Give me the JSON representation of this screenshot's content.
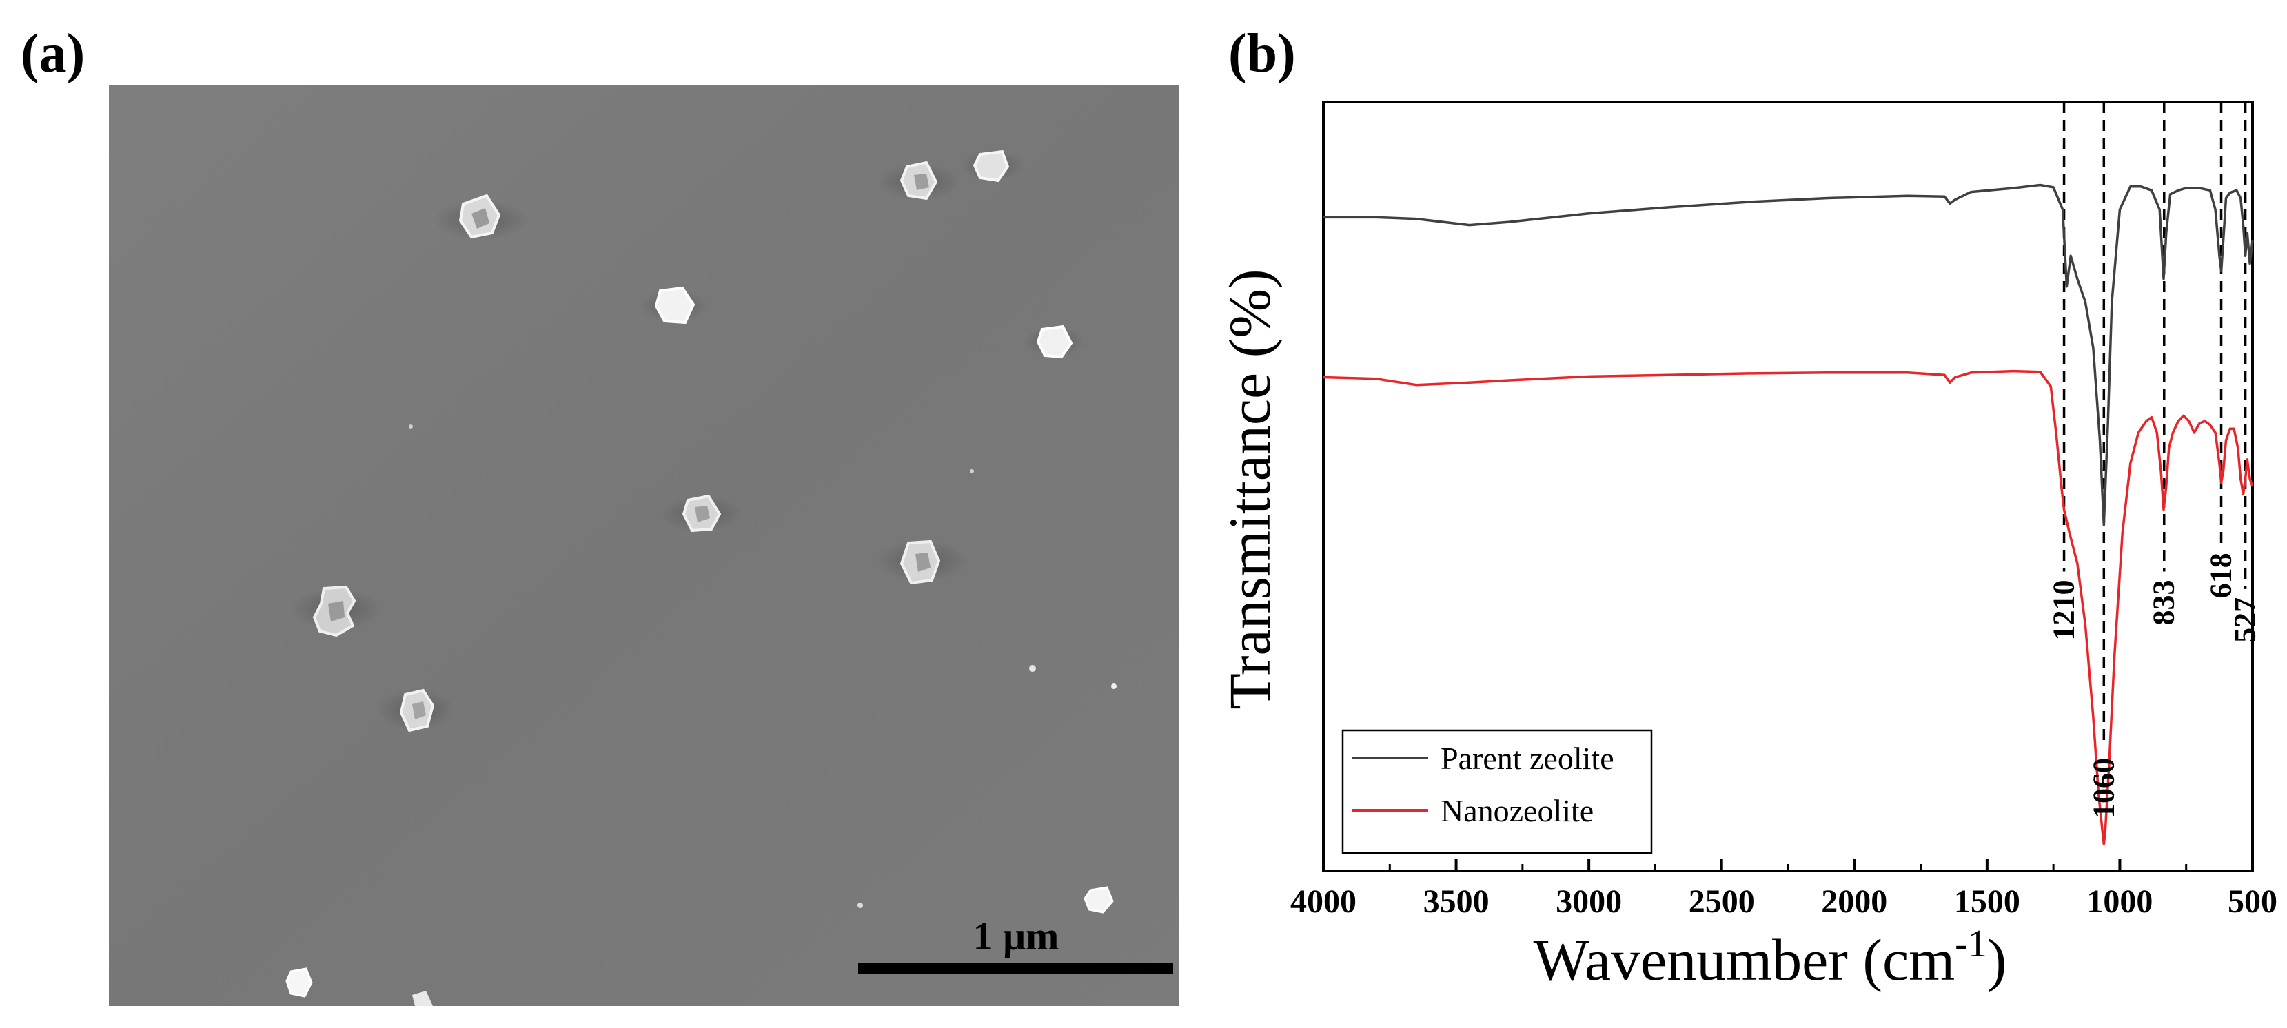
{
  "panels": {
    "a": {
      "label": "(a)",
      "scale_bar_label": "1 μm"
    },
    "b": {
      "label": "(b)"
    }
  },
  "colors": {
    "parent": "#404040",
    "nano": "#e8262a",
    "sem_background": "#7a7a7a",
    "particle": "#e6e6e6"
  },
  "chart_data": {
    "type": "line",
    "title": "",
    "xlabel": "Wavenumber (cm-1)",
    "xlabel_main": "Wavenumber (cm",
    "xlabel_sup": "-1",
    "xlabel_close": ")",
    "ylabel": "Transmittance (%)",
    "xlim": [
      4000,
      500
    ],
    "ylim": [
      0,
      100
    ],
    "xticks": [
      4000,
      3500,
      3000,
      2500,
      2000,
      1500,
      1000,
      500
    ],
    "x_inverted": true,
    "legend_position": "bottom-left",
    "series": [
      {
        "name": "Parent zeolite",
        "color": "#404040",
        "x": [
          4000,
          3800,
          3650,
          3450,
          3300,
          3000,
          2700,
          2400,
          2100,
          1800,
          1660,
          1640,
          1620,
          1560,
          1400,
          1300,
          1250,
          1215,
          1200,
          1185,
          1160,
          1130,
          1100,
          1075,
          1060,
          1045,
          1030,
          1000,
          960,
          920,
          880,
          850,
          835,
          825,
          810,
          780,
          750,
          700,
          660,
          640,
          625,
          618,
          610,
          600,
          585,
          560,
          545,
          535,
          527,
          520,
          510,
          500
        ],
        "y": [
          85,
          85,
          84.8,
          84,
          84.4,
          85.5,
          86.3,
          87,
          87.5,
          87.8,
          87.7,
          86.8,
          87.3,
          88.3,
          88.8,
          89.2,
          88.9,
          86,
          76,
          80,
          77,
          74,
          68,
          56,
          45,
          58,
          74,
          86,
          89,
          89,
          88.5,
          86,
          77,
          83,
          88,
          88.5,
          88.8,
          88.8,
          88.5,
          86,
          80,
          78,
          82,
          87.5,
          88.2,
          88.5,
          87.5,
          84,
          80,
          83,
          79,
          82
        ]
      },
      {
        "name": "Nanozeolite",
        "color": "#e8262a",
        "x": [
          4000,
          3800,
          3650,
          3450,
          3300,
          3000,
          2700,
          2400,
          2100,
          1800,
          1660,
          1640,
          1620,
          1560,
          1400,
          1300,
          1260,
          1240,
          1220,
          1210,
          1190,
          1160,
          1130,
          1100,
          1080,
          1065,
          1060,
          1055,
          1040,
          1020,
          990,
          960,
          930,
          900,
          880,
          860,
          845,
          835,
          825,
          815,
          800,
          780,
          760,
          740,
          720,
          700,
          680,
          660,
          640,
          625,
          618,
          610,
          600,
          585,
          570,
          555,
          545,
          535,
          527,
          520,
          510,
          500
        ],
        "y": [
          64.2,
          64,
          63.2,
          63.5,
          63.8,
          64.3,
          64.5,
          64.7,
          64.8,
          64.8,
          64.5,
          63.5,
          64.2,
          64.8,
          65,
          64.9,
          63,
          57,
          50,
          47,
          44,
          40,
          32,
          20,
          10,
          5,
          3.5,
          5,
          14,
          28,
          44,
          53,
          57,
          58.5,
          59,
          57,
          52,
          47,
          50,
          55,
          57,
          58.5,
          59.2,
          58.5,
          57,
          58.2,
          58.5,
          58,
          57,
          53,
          50.5,
          52,
          56,
          57.5,
          57.5,
          55,
          51,
          49,
          51,
          53.5,
          51,
          50
        ]
      }
    ],
    "annotations": [
      {
        "label": "1210",
        "x": 1210,
        "text_position": "below-line"
      },
      {
        "label": "1060",
        "x": 1060,
        "text_position": "bottom"
      },
      {
        "label": "833",
        "x": 833,
        "text_position": "below-line"
      },
      {
        "label": "618",
        "x": 618,
        "text_position": "below-line"
      },
      {
        "label": "527",
        "x": 527,
        "text_position": "below-line"
      }
    ]
  }
}
